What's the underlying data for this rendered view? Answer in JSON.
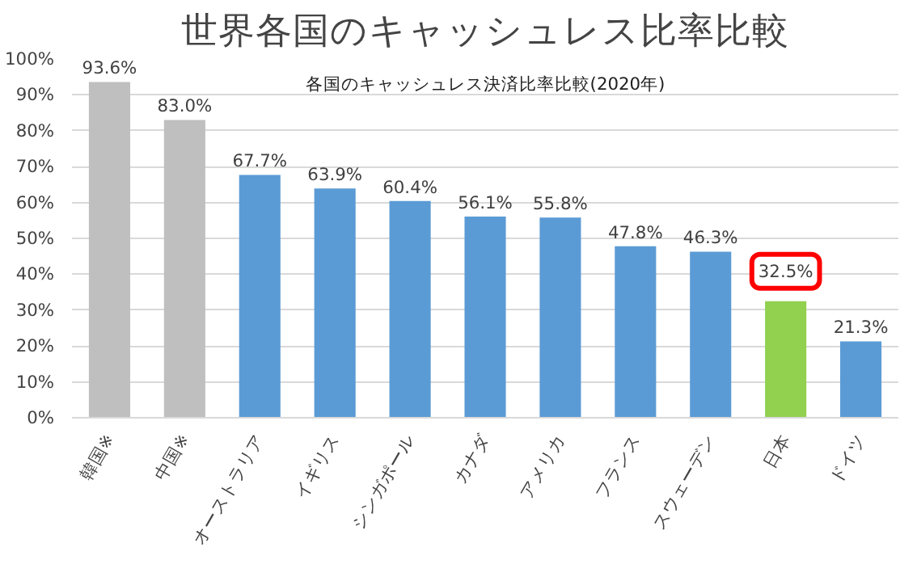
{
  "chart_data": {
    "type": "bar",
    "title": "世界各国のキャッシュレス比率比較",
    "subtitle": "各国のキャッシュレス決済比率比較(2020年)",
    "categories": [
      "韓国※",
      "中国※",
      "オーストラリア",
      "イギリス",
      "シンガポール",
      "カナダ",
      "アメリカ",
      "フランス",
      "スウェーデン",
      "日本",
      "ドイツ"
    ],
    "values": [
      93.6,
      83.0,
      67.7,
      63.9,
      60.4,
      56.1,
      55.8,
      47.8,
      46.3,
      32.5,
      21.3
    ],
    "colors": [
      "#bfbfbf",
      "#bfbfbf",
      "#5b9bd5",
      "#5b9bd5",
      "#5b9bd5",
      "#5b9bd5",
      "#5b9bd5",
      "#5b9bd5",
      "#5b9bd5",
      "#92d050",
      "#5b9bd5"
    ],
    "value_labels": [
      "93.6%",
      "83.0%",
      "67.7%",
      "63.9%",
      "60.4%",
      "56.1%",
      "55.8%",
      "47.8%",
      "46.3%",
      null,
      "21.3%"
    ],
    "annotations": [
      {
        "text": "32.5%",
        "x": "日本",
        "y": 32.5
      }
    ],
    "ylim": [
      0,
      100
    ],
    "yticks": [
      {
        "value": 0,
        "label": "0%"
      },
      {
        "value": 10,
        "label": "10%"
      },
      {
        "value": 20,
        "label": "20%"
      },
      {
        "value": 30,
        "label": "30%"
      },
      {
        "value": 40,
        "label": "40%"
      },
      {
        "value": 50,
        "label": "50%"
      },
      {
        "value": 60,
        "label": "60%"
      },
      {
        "value": 70,
        "label": "70%"
      },
      {
        "value": 80,
        "label": "80%"
      },
      {
        "value": 90,
        "label": "90%"
      },
      {
        "value": 100,
        "label": "100%"
      }
    ],
    "grid": "y"
  }
}
